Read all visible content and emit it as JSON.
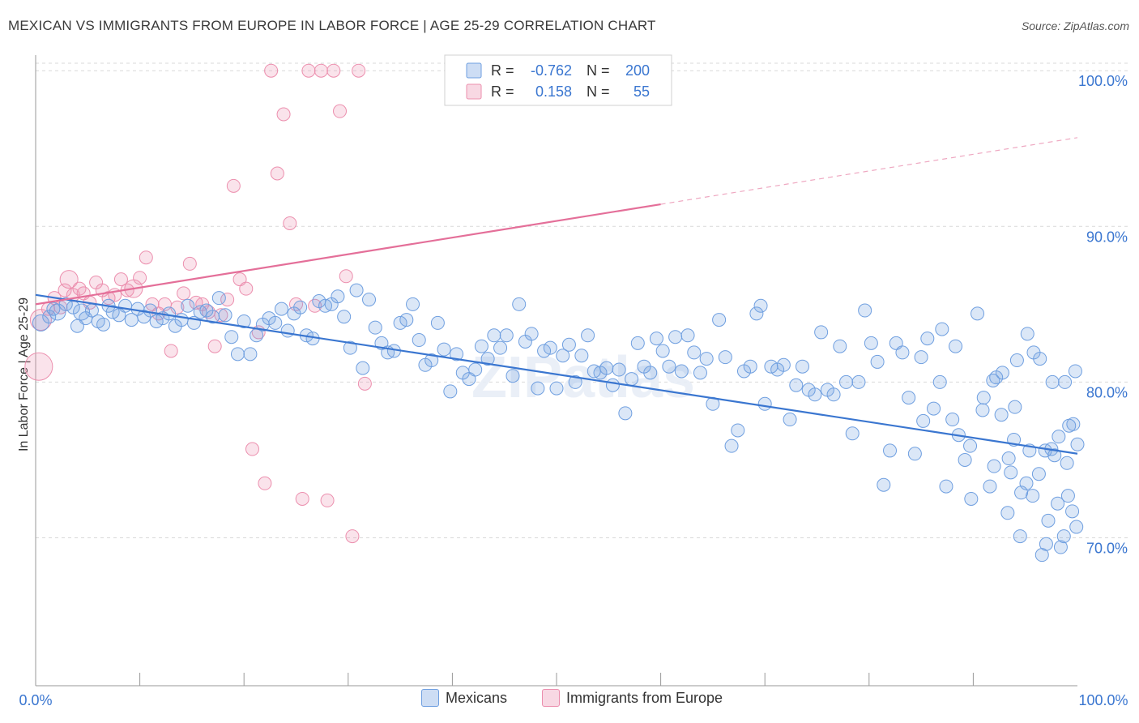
{
  "header": {
    "title": "MEXICAN VS IMMIGRANTS FROM EUROPE IN LABOR FORCE | AGE 25-29 CORRELATION CHART",
    "source": "Source: ZipAtlas.com"
  },
  "watermark": "ZIPatlas",
  "legend_box": {
    "rows": [
      {
        "r_label": "R =",
        "r_value": "-0.762",
        "n_label": "N =",
        "n_value": "200",
        "color": "#6f9fe0"
      },
      {
        "r_label": "R =",
        "r_value": "0.158",
        "n_label": "N =",
        "n_value": "55",
        "color": "#ec8fae"
      }
    ]
  },
  "bottom_legend": [
    {
      "label": "Mexicans",
      "color": "#6f9fe0"
    },
    {
      "label": "Immigrants from Europe",
      "color": "#ec8fae"
    }
  ],
  "colors": {
    "blue_fill": "rgba(111,159,224,0.25)",
    "blue_stroke": "#6f9fe0",
    "blue_line": "#3a76d0",
    "pink_fill": "rgba(236,143,174,0.25)",
    "pink_stroke": "#ec8fae",
    "pink_line": "#e46f99",
    "tick_text": "#3a76d0",
    "grid": "#d9d9d9"
  },
  "chart_data": {
    "type": "scatter",
    "title": "MEXICAN VS IMMIGRANTS FROM EUROPE IN LABOR FORCE | AGE 25-29 CORRELATION CHART",
    "xlabel": "",
    "ylabel": "In Labor Force | Age 25-29",
    "xlim": [
      0,
      100
    ],
    "ylim": [
      60.5,
      101
    ],
    "x_tick_labels": [
      "0.0%",
      "100.0%"
    ],
    "y_ticks": [
      70,
      80,
      90,
      100
    ],
    "y_tick_labels": [
      "70.0%",
      "80.0%",
      "90.0%",
      "100.0%"
    ],
    "grid": true,
    "legend_position": "top-center",
    "series": [
      {
        "name": "Mexicans",
        "R": -0.762,
        "N": 200,
        "trend": {
          "x0": 0,
          "y0": 85.6,
          "x1": 100,
          "y1": 75.4
        },
        "points": [
          [
            0.5,
            83.8
          ],
          [
            1.3,
            84.2
          ],
          [
            1.7,
            84.7
          ],
          [
            2.1,
            84.5
          ],
          [
            2.9,
            85.0
          ],
          [
            3.6,
            84.8
          ],
          [
            4.0,
            83.6
          ],
          [
            4.4,
            84.5
          ],
          [
            4.8,
            84.1
          ],
          [
            5.4,
            84.6
          ],
          [
            6.0,
            83.9
          ],
          [
            6.5,
            83.7
          ],
          [
            7.0,
            84.9
          ],
          [
            7.4,
            84.5
          ],
          [
            8.0,
            84.3
          ],
          [
            8.6,
            84.9
          ],
          [
            9.2,
            84.0
          ],
          [
            9.8,
            84.7
          ],
          [
            10.4,
            84.2
          ],
          [
            11.0,
            84.6
          ],
          [
            11.6,
            83.9
          ],
          [
            12.2,
            84.1
          ],
          [
            12.8,
            84.4
          ],
          [
            13.4,
            83.6
          ],
          [
            14.0,
            84.0
          ],
          [
            14.6,
            84.9
          ],
          [
            15.2,
            83.8
          ],
          [
            15.8,
            84.5
          ],
          [
            16.4,
            84.6
          ],
          [
            17.0,
            84.2
          ],
          [
            17.6,
            85.4
          ],
          [
            18.2,
            84.3
          ],
          [
            18.8,
            82.9
          ],
          [
            19.4,
            81.8
          ],
          [
            20.0,
            83.9
          ],
          [
            20.6,
            81.8
          ],
          [
            21.2,
            83.0
          ],
          [
            21.8,
            83.7
          ],
          [
            22.4,
            84.1
          ],
          [
            23.0,
            83.8
          ],
          [
            23.6,
            84.7
          ],
          [
            24.2,
            83.3
          ],
          [
            24.8,
            84.4
          ],
          [
            25.4,
            84.8
          ],
          [
            26.0,
            83.0
          ],
          [
            26.6,
            82.8
          ],
          [
            27.2,
            85.2
          ],
          [
            27.8,
            84.9
          ],
          [
            28.4,
            85.0
          ],
          [
            29.0,
            85.5
          ],
          [
            29.6,
            84.2
          ],
          [
            30.2,
            82.2
          ],
          [
            30.8,
            85.9
          ],
          [
            31.4,
            80.9
          ],
          [
            32.0,
            85.3
          ],
          [
            32.6,
            83.5
          ],
          [
            33.2,
            82.5
          ],
          [
            33.8,
            81.9
          ],
          [
            34.4,
            82.0
          ],
          [
            35.0,
            83.8
          ],
          [
            35.6,
            84.0
          ],
          [
            36.2,
            85.0
          ],
          [
            36.8,
            82.7
          ],
          [
            37.4,
            81.1
          ],
          [
            38.0,
            81.4
          ],
          [
            38.6,
            83.8
          ],
          [
            39.2,
            82.1
          ],
          [
            39.8,
            79.4
          ],
          [
            40.4,
            81.8
          ],
          [
            41.0,
            80.6
          ],
          [
            41.6,
            80.2
          ],
          [
            42.2,
            80.8
          ],
          [
            42.8,
            82.3
          ],
          [
            43.4,
            81.5
          ],
          [
            44.0,
            83.0
          ],
          [
            44.6,
            82.2
          ],
          [
            45.2,
            83.0
          ],
          [
            45.8,
            80.4
          ],
          [
            46.4,
            85.0
          ],
          [
            47.0,
            82.6
          ],
          [
            47.6,
            83.1
          ],
          [
            48.2,
            79.6
          ],
          [
            48.8,
            82.0
          ],
          [
            49.4,
            82.2
          ],
          [
            50.0,
            79.6
          ],
          [
            50.6,
            81.7
          ],
          [
            51.2,
            82.4
          ],
          [
            51.8,
            80.0
          ],
          [
            52.4,
            81.7
          ],
          [
            53.0,
            83.0
          ],
          [
            53.6,
            80.7
          ],
          [
            54.2,
            80.6
          ],
          [
            54.8,
            80.9
          ],
          [
            55.4,
            79.8
          ],
          [
            56.0,
            80.8
          ],
          [
            56.6,
            78.0
          ],
          [
            57.2,
            80.2
          ],
          [
            57.8,
            82.5
          ],
          [
            58.4,
            81.0
          ],
          [
            59.0,
            80.6
          ],
          [
            59.6,
            82.8
          ],
          [
            60.2,
            82.0
          ],
          [
            60.8,
            81.0
          ],
          [
            61.4,
            82.9
          ],
          [
            62.0,
            80.7
          ],
          [
            62.6,
            83.0
          ],
          [
            63.2,
            81.9
          ],
          [
            63.8,
            80.6
          ],
          [
            64.4,
            81.5
          ],
          [
            65.0,
            78.6
          ],
          [
            65.6,
            84.0
          ],
          [
            66.2,
            81.6
          ],
          [
            66.8,
            75.9
          ],
          [
            67.4,
            76.9
          ],
          [
            68.0,
            80.7
          ],
          [
            68.6,
            81.0
          ],
          [
            69.2,
            84.4
          ],
          [
            69.6,
            84.9
          ],
          [
            70.0,
            78.6
          ],
          [
            70.6,
            81.0
          ],
          [
            71.2,
            80.8
          ],
          [
            71.8,
            81.1
          ],
          [
            72.4,
            77.6
          ],
          [
            73.0,
            79.8
          ],
          [
            73.6,
            81.0
          ],
          [
            74.2,
            79.5
          ],
          [
            74.8,
            79.2
          ],
          [
            75.4,
            83.2
          ],
          [
            76.0,
            79.5
          ],
          [
            76.6,
            79.2
          ],
          [
            77.2,
            82.3
          ],
          [
            77.8,
            80.0
          ],
          [
            78.4,
            76.7
          ],
          [
            79.0,
            80.0
          ],
          [
            79.6,
            84.6
          ],
          [
            80.2,
            82.5
          ],
          [
            80.8,
            81.3
          ],
          [
            81.4,
            73.4
          ],
          [
            82.0,
            75.6
          ],
          [
            82.6,
            82.5
          ],
          [
            83.2,
            81.9
          ],
          [
            83.8,
            79.0
          ],
          [
            84.4,
            75.4
          ],
          [
            85.0,
            81.6
          ],
          [
            85.6,
            82.8
          ],
          [
            86.2,
            78.3
          ],
          [
            86.8,
            80.0
          ],
          [
            87.4,
            73.3
          ],
          [
            88.0,
            77.6
          ],
          [
            88.6,
            76.6
          ],
          [
            89.2,
            75.0
          ],
          [
            89.8,
            72.5
          ],
          [
            90.4,
            84.4
          ],
          [
            91.0,
            79.0
          ],
          [
            91.6,
            73.3
          ],
          [
            92.2,
            80.3
          ],
          [
            92.8,
            80.6
          ],
          [
            93.4,
            75.1
          ],
          [
            94.0,
            78.4
          ],
          [
            94.6,
            72.9
          ],
          [
            95.2,
            83.1
          ],
          [
            95.8,
            81.9
          ],
          [
            96.4,
            81.5
          ],
          [
            97.0,
            69.6
          ],
          [
            97.6,
            80.0
          ],
          [
            98.2,
            76.5
          ],
          [
            98.8,
            80.0
          ],
          [
            99.2,
            77.2
          ],
          [
            99.6,
            77.3
          ],
          [
            100.0,
            76.0
          ],
          [
            85.2,
            77.5
          ],
          [
            87.0,
            83.4
          ],
          [
            88.3,
            82.3
          ],
          [
            89.7,
            75.9
          ],
          [
            90.9,
            78.2
          ],
          [
            91.9,
            80.1
          ],
          [
            92.7,
            77.9
          ],
          [
            93.3,
            71.6
          ],
          [
            93.9,
            76.3
          ],
          [
            94.5,
            70.1
          ],
          [
            95.1,
            73.5
          ],
          [
            95.7,
            72.7
          ],
          [
            96.3,
            74.1
          ],
          [
            96.9,
            75.6
          ],
          [
            97.5,
            75.7
          ],
          [
            98.1,
            72.2
          ],
          [
            98.7,
            70.1
          ],
          [
            99.1,
            72.7
          ],
          [
            99.5,
            71.7
          ],
          [
            99.9,
            70.7
          ],
          [
            92.0,
            74.6
          ],
          [
            93.6,
            74.2
          ],
          [
            94.2,
            81.4
          ],
          [
            95.4,
            75.6
          ],
          [
            96.6,
            68.9
          ],
          [
            97.2,
            71.1
          ],
          [
            97.8,
            75.3
          ],
          [
            98.4,
            69.4
          ],
          [
            99.0,
            74.8
          ],
          [
            99.8,
            80.7
          ]
        ]
      },
      {
        "name": "Immigrants from Europe",
        "R": 0.158,
        "N": 55,
        "trend": {
          "x0": 0,
          "y0": 85.0,
          "x1": 100,
          "y1": 95.7,
          "solid_until_x": 60
        },
        "points": [
          [
            0.3,
            81.0
          ],
          [
            0.5,
            84.0
          ],
          [
            1.2,
            84.7
          ],
          [
            1.8,
            85.4
          ],
          [
            2.4,
            84.8
          ],
          [
            2.8,
            85.9
          ],
          [
            3.2,
            86.6
          ],
          [
            3.6,
            85.6
          ],
          [
            4.2,
            86.0
          ],
          [
            4.6,
            85.7
          ],
          [
            5.2,
            85.1
          ],
          [
            5.8,
            86.4
          ],
          [
            6.4,
            85.9
          ],
          [
            7.0,
            85.4
          ],
          [
            7.6,
            85.6
          ],
          [
            8.2,
            86.6
          ],
          [
            8.8,
            85.9
          ],
          [
            9.4,
            86.0
          ],
          [
            10.0,
            86.7
          ],
          [
            10.6,
            88.0
          ],
          [
            11.2,
            85.0
          ],
          [
            11.8,
            84.4
          ],
          [
            12.4,
            85.0
          ],
          [
            13.0,
            82.0
          ],
          [
            13.6,
            84.8
          ],
          [
            14.2,
            85.7
          ],
          [
            14.8,
            87.6
          ],
          [
            15.4,
            85.1
          ],
          [
            16.0,
            85.0
          ],
          [
            16.6,
            84.5
          ],
          [
            17.2,
            82.3
          ],
          [
            17.8,
            84.3
          ],
          [
            18.4,
            85.3
          ],
          [
            19.0,
            92.6
          ],
          [
            19.6,
            86.6
          ],
          [
            20.2,
            86.0
          ],
          [
            20.8,
            75.7
          ],
          [
            21.4,
            83.2
          ],
          [
            22.0,
            73.5
          ],
          [
            22.6,
            100.0
          ],
          [
            23.2,
            93.4
          ],
          [
            23.8,
            97.2
          ],
          [
            24.4,
            90.2
          ],
          [
            25.0,
            85.0
          ],
          [
            25.6,
            72.5
          ],
          [
            26.2,
            100.0
          ],
          [
            26.8,
            84.9
          ],
          [
            27.4,
            100.0
          ],
          [
            28.0,
            72.4
          ],
          [
            28.6,
            100.0
          ],
          [
            29.2,
            97.4
          ],
          [
            29.8,
            86.8
          ],
          [
            30.4,
            70.1
          ],
          [
            31.0,
            100.0
          ],
          [
            31.6,
            79.9
          ]
        ]
      }
    ]
  }
}
